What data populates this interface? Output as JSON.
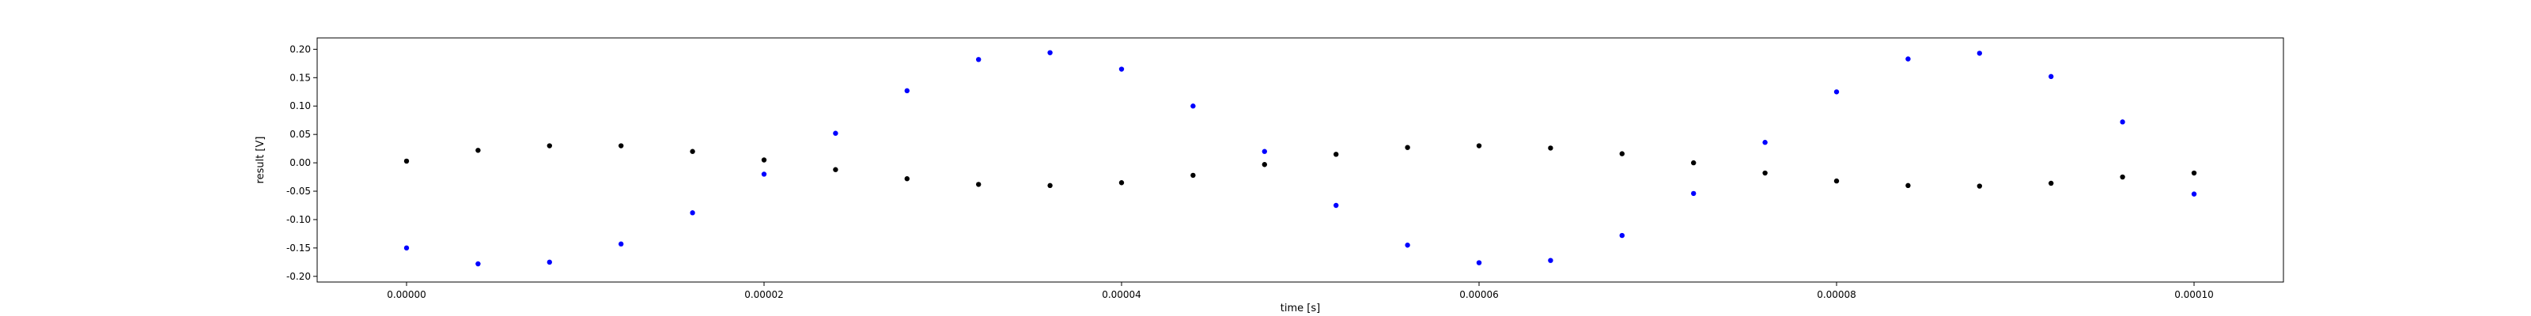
{
  "chart_data": {
    "type": "scatter",
    "xlabel": "time [s]",
    "ylabel": "result [V]",
    "xlim": [
      -5e-06,
      0.000105
    ],
    "ylim": [
      -0.21,
      0.22
    ],
    "grid": false,
    "x_ticks": [
      {
        "value": 0.0,
        "label": "0.00000"
      },
      {
        "value": 2e-05,
        "label": "0.00002"
      },
      {
        "value": 4e-05,
        "label": "0.00004"
      },
      {
        "value": 6e-05,
        "label": "0.00006"
      },
      {
        "value": 8e-05,
        "label": "0.00008"
      },
      {
        "value": 0.0001,
        "label": "0.00010"
      }
    ],
    "y_ticks": [
      {
        "value": 0.2,
        "label": "0.20"
      },
      {
        "value": 0.15,
        "label": "0.15"
      },
      {
        "value": 0.1,
        "label": "0.10"
      },
      {
        "value": 0.05,
        "label": "0.05"
      },
      {
        "value": 0.0,
        "label": "0.00"
      },
      {
        "value": -0.05,
        "label": "-0.05"
      },
      {
        "value": -0.1,
        "label": "-0.10"
      },
      {
        "value": -0.15,
        "label": "-0.15"
      },
      {
        "value": -0.2,
        "label": "-0.20"
      }
    ],
    "series": [
      {
        "color": "#0000ff",
        "x": [
          0.0,
          4e-06,
          8e-06,
          1.2e-05,
          1.6e-05,
          2e-05,
          2.4e-05,
          2.8e-05,
          3.2e-05,
          3.6e-05,
          4e-05,
          4.4e-05,
          4.8e-05,
          5.2e-05,
          5.6e-05,
          6e-05,
          6.4e-05,
          6.8e-05,
          7.2e-05,
          7.6e-05,
          8e-05,
          8.4e-05,
          8.8e-05,
          9.2e-05,
          9.6e-05,
          0.0001
        ],
        "y": [
          -0.15,
          -0.178,
          -0.175,
          -0.143,
          -0.088,
          -0.02,
          0.052,
          0.127,
          0.182,
          0.194,
          0.165,
          0.1,
          0.02,
          -0.075,
          -0.145,
          -0.176,
          -0.172,
          -0.128,
          -0.054,
          0.036,
          0.125,
          0.183,
          0.193,
          0.152,
          0.072,
          -0.055
        ]
      },
      {
        "color": "#000000",
        "x": [
          0.0,
          4e-06,
          8e-06,
          1.2e-05,
          1.6e-05,
          2e-05,
          2.4e-05,
          2.8e-05,
          3.2e-05,
          3.6e-05,
          4e-05,
          4.4e-05,
          4.8e-05,
          5.2e-05,
          5.6e-05,
          6e-05,
          6.4e-05,
          6.8e-05,
          7.2e-05,
          7.6e-05,
          8e-05,
          8.4e-05,
          8.8e-05,
          9.2e-05,
          9.6e-05,
          0.0001
        ],
        "y": [
          0.003,
          0.022,
          0.03,
          0.03,
          0.02,
          0.005,
          -0.012,
          -0.028,
          -0.038,
          -0.04,
          -0.035,
          -0.022,
          -0.003,
          0.015,
          0.027,
          0.03,
          0.026,
          0.016,
          0.0,
          -0.018,
          -0.032,
          -0.04,
          -0.041,
          -0.036,
          -0.025,
          -0.018
        ]
      }
    ]
  }
}
